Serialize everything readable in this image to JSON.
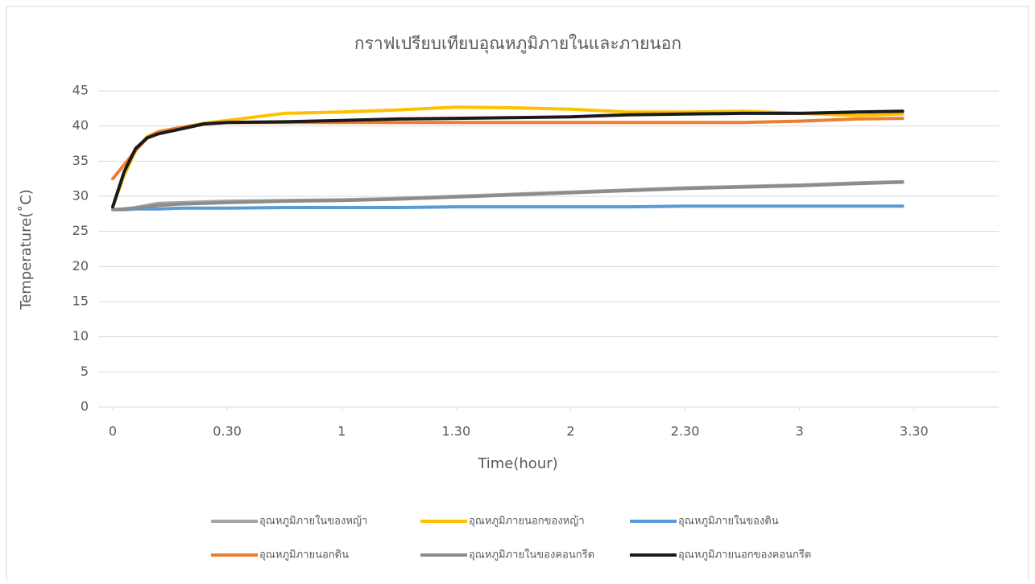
{
  "chart_data": {
    "type": "line",
    "title": "กราฟเปรียบเทียบอุณหภูมิภายในและภายนอก",
    "x_label": "Time(hour)",
    "y_label": "Temperature(˚C)",
    "x": [
      0,
      0.05,
      0.1,
      0.15,
      0.2,
      0.3,
      0.4,
      0.5,
      0.75,
      1,
      1.25,
      1.5,
      1.75,
      2,
      2.25,
      2.5,
      2.75,
      3,
      3.25,
      3.45
    ],
    "series": [
      {
        "name": "อุณหภูมิภายในของหญ้า",
        "color": "#a5a5a5",
        "values": [
          28.1,
          28.2,
          28.4,
          28.7,
          29.0,
          29.1,
          29.2,
          29.3,
          29.4,
          29.5,
          29.7,
          30.0,
          30.3,
          30.6,
          30.9,
          31.2,
          31.4,
          31.6,
          31.9,
          32.1
        ]
      },
      {
        "name": "อุณหภูมิภายนอกของหญ้า",
        "color": "#ffc000",
        "values": [
          28.5,
          33.0,
          36.5,
          38.5,
          39.2,
          39.8,
          40.4,
          40.8,
          41.8,
          42.0,
          42.3,
          42.7,
          42.6,
          42.4,
          42.0,
          42.0,
          42.1,
          41.8,
          41.5,
          41.7
        ]
      },
      {
        "name": "อุณหภูมิภายในของดิน",
        "color": "#5b9bd5",
        "values": [
          28.1,
          28.1,
          28.2,
          28.2,
          28.2,
          28.3,
          28.3,
          28.3,
          28.4,
          28.4,
          28.4,
          28.5,
          28.5,
          28.5,
          28.5,
          28.6,
          28.6,
          28.6,
          28.6,
          28.6
        ]
      },
      {
        "name": "อุณหภูมิภายนอกดิน",
        "color": "#ed7d31",
        "values": [
          32.5,
          34.5,
          36.5,
          38.3,
          39.2,
          39.8,
          40.3,
          40.5,
          40.5,
          40.5,
          40.5,
          40.5,
          40.5,
          40.5,
          40.5,
          40.5,
          40.5,
          40.7,
          41.0,
          41.1
        ]
      },
      {
        "name": "อุณหภูมิภายในของคอนกรีต",
        "color": "#8c8c8c",
        "values": [
          28.1,
          28.2,
          28.3,
          28.5,
          28.7,
          28.9,
          29.0,
          29.1,
          29.3,
          29.4,
          29.6,
          29.9,
          30.2,
          30.5,
          30.8,
          31.1,
          31.3,
          31.5,
          31.8,
          32.0
        ]
      },
      {
        "name": "อุณหภูมิภายนอกของคอนกรีต",
        "color": "#1a1a1a",
        "values": [
          28.5,
          33.5,
          36.8,
          38.3,
          38.9,
          39.6,
          40.3,
          40.5,
          40.6,
          40.8,
          41.0,
          41.1,
          41.2,
          41.3,
          41.6,
          41.7,
          41.8,
          41.8,
          42.0,
          42.1
        ]
      }
    ],
    "xlim": [
      0,
      3.87
    ],
    "xticks": [
      0,
      {
        "value": 0.5,
        "label": "0.30"
      },
      1,
      {
        "value": 1.5,
        "label": "1.30"
      },
      2,
      {
        "value": 2.5,
        "label": "2.30"
      },
      3,
      {
        "value": 3.5,
        "label": "3.30"
      }
    ],
    "ylim": [
      0,
      45
    ],
    "yticks": [
      0,
      5,
      10,
      15,
      20,
      25,
      30,
      35,
      40,
      45
    ],
    "grid": true,
    "legend": "bottom"
  }
}
